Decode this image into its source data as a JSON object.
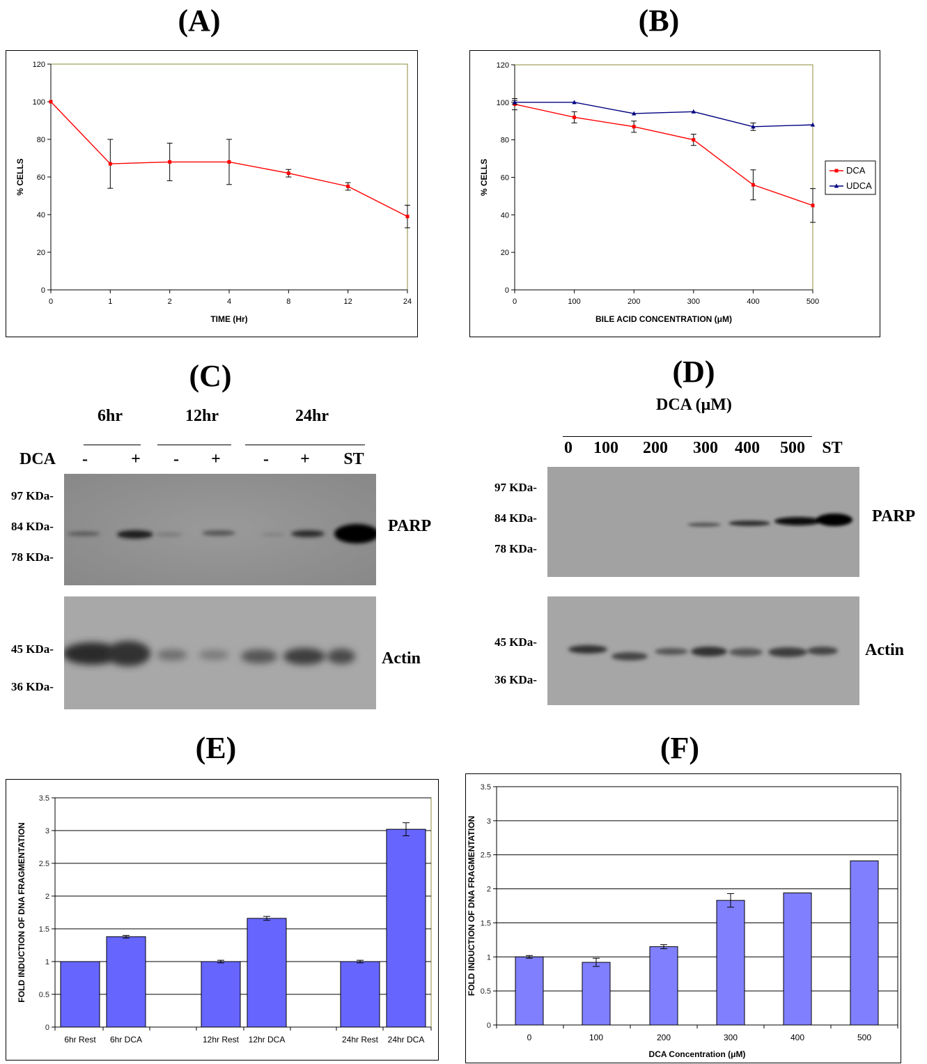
{
  "panels": {
    "A": {
      "letter": "(A)"
    },
    "B": {
      "letter": "(B)"
    },
    "C": {
      "letter": "(C)"
    },
    "D": {
      "letter": "(D)"
    },
    "E": {
      "letter": "(E)"
    },
    "F": {
      "letter": "(F)"
    }
  },
  "blot_c": {
    "time_labels": [
      "6hr",
      "12hr",
      "24hr"
    ],
    "row_label": "DCA",
    "lanes": [
      "-",
      "+",
      "-",
      "+",
      "-",
      "+",
      "ST"
    ],
    "parp_markers": [
      "97 KDa-",
      "84 KDa-",
      "78 KDa-"
    ],
    "actin_markers": [
      "45 KDa-",
      "36 KDa-"
    ],
    "parp_label": "PARP",
    "actin_label": "Actin"
  },
  "blot_d": {
    "header": "DCA (μM)",
    "lanes": [
      "0",
      "100",
      "200",
      "300",
      "400",
      "500",
      "ST"
    ],
    "parp_markers": [
      "97 KDa-",
      "84 KDa-",
      "78 KDa-"
    ],
    "actin_markers": [
      "45 KDa-",
      "36 KDa-"
    ],
    "parp_label": "PARP",
    "actin_label": "Actin"
  },
  "chart_data": [
    {
      "id": "A",
      "type": "line",
      "categories": [
        "0",
        "1",
        "2",
        "4",
        "8",
        "12",
        "24"
      ],
      "series": [
        {
          "values": [
            100,
            67,
            68,
            68,
            62,
            55,
            39
          ],
          "errors": [
            0,
            13,
            10,
            12,
            2,
            2,
            6
          ],
          "color": "#ff0000",
          "marker": "square"
        }
      ],
      "xlabel": "TIME (Hr)",
      "ylabel": "% CELLS",
      "ylim": [
        0,
        120
      ],
      "yticks": [
        0,
        20,
        40,
        60,
        80,
        100,
        120
      ],
      "grid": false
    },
    {
      "id": "B",
      "type": "line",
      "categories": [
        "0",
        "100",
        "200",
        "300",
        "400",
        "500"
      ],
      "series": [
        {
          "name": "DCA",
          "values": [
            99,
            92,
            87,
            80,
            56,
            45
          ],
          "errors": [
            3,
            3,
            3,
            3,
            8,
            9
          ],
          "color": "#ff0000",
          "marker": "square"
        },
        {
          "name": "UDCA",
          "values": [
            100,
            100,
            94,
            95,
            87,
            88
          ],
          "errors": [
            1,
            0,
            0,
            0,
            2,
            0
          ],
          "color": "#000080",
          "marker": "triangle"
        }
      ],
      "xlabel": "BILE ACID CONCENTRATION (μM)",
      "ylabel": "% CELLS",
      "ylim": [
        0,
        120
      ],
      "yticks": [
        0,
        20,
        40,
        60,
        80,
        100,
        120
      ],
      "grid": false,
      "legend": "right"
    },
    {
      "id": "E",
      "type": "bar",
      "categories": [
        "6hr Rest",
        "6hr DCA",
        "12hr Rest",
        "12hr DCA",
        "24hr Rest",
        "24hr DCA"
      ],
      "values": [
        1.0,
        1.38,
        1.0,
        1.66,
        1.0,
        3.02
      ],
      "errors": [
        0,
        0.02,
        0.02,
        0.03,
        0.02,
        0.1
      ],
      "color": "#6666ff",
      "ylabel": "FOLD INDUCTION OF DNA FRAGMENTATION",
      "ylim": [
        0,
        3.5
      ],
      "yticks": [
        "0",
        "0.5",
        "1",
        "1.5",
        "2",
        "2.5",
        "3",
        "3.5"
      ],
      "grid": true
    },
    {
      "id": "F",
      "type": "bar",
      "categories": [
        "0",
        "100",
        "200",
        "300",
        "400",
        "500"
      ],
      "values": [
        1.0,
        0.92,
        1.15,
        1.83,
        1.94,
        2.41
      ],
      "errors": [
        0.02,
        0.06,
        0.03,
        0.1,
        0,
        0
      ],
      "color": "#8080ff",
      "xlabel": "DCA Concentration (μM)",
      "ylabel": "FOLD INDUCTION OF DNA FRAGMENTATION",
      "ylim": [
        0,
        3.5
      ],
      "yticks": [
        "0",
        "0.5",
        "1",
        "1.5",
        "2",
        "2.5",
        "3",
        "3.5"
      ],
      "grid": true
    }
  ]
}
